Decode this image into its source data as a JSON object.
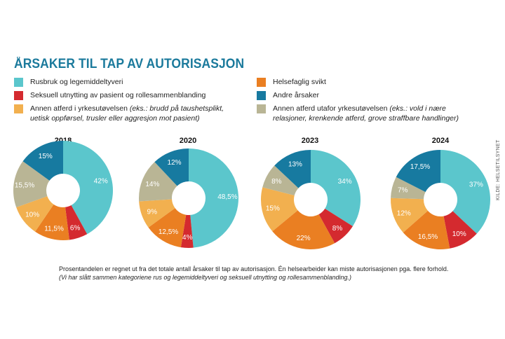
{
  "title": "ÅRSAKER TIL TAP AV AUTORISASJON",
  "legend": [
    {
      "label": "Rusbruk og legemiddeltyveri",
      "note": "",
      "color": "#5bc6cc"
    },
    {
      "label": "Seksuell utnytting av pasient og rollesammenblanding",
      "note": "",
      "color": "#d42a2f"
    },
    {
      "label": "Annen atferd i yrkesutøvelsen",
      "note": "(eks.: brudd på taushetsplikt,",
      "note2": "uetisk oppførsel, trusler eller aggresjon mot pasient)",
      "color": "#f2b04f"
    },
    {
      "label": "Helsefaglig svikt",
      "note": "",
      "color": "#ea7f22"
    },
    {
      "label": "Andre årsaker",
      "note": "",
      "color": "#177aa0"
    },
    {
      "label": "Annen atferd utafor yrkesutøvelsen",
      "note": "(eks.: vold i nære",
      "note2": "relasjoner, krenkende atferd, grove straffbare handlinger)",
      "color": "#b9b595"
    }
  ],
  "chart_data": {
    "type": "pie",
    "variant": "donut",
    "categories": [
      "Rusbruk og legemiddeltyveri",
      "Seksuell utnytting av pasient og rollesammenblanding",
      "Helsefaglig svikt",
      "Annen atferd i yrkesutøvelsen",
      "Annen atferd utafor yrkesutøvelsen",
      "Andre årsaker"
    ],
    "colors": [
      "#5bc6cc",
      "#d42a2f",
      "#ea7f22",
      "#f2b04f",
      "#b9b595",
      "#177aa0"
    ],
    "series": [
      {
        "name": "2018",
        "values": [
          42,
          6,
          11.5,
          10,
          15.5,
          15
        ],
        "labels": [
          "42%",
          "6%",
          "11,5%",
          "10%",
          "15,5%",
          "15%"
        ]
      },
      {
        "name": "2020",
        "values": [
          48.5,
          4,
          12.5,
          9,
          14,
          12
        ],
        "labels": [
          "48,5%",
          "4%",
          "12,5%",
          "9%",
          "14%",
          "12%"
        ]
      },
      {
        "name": "2023",
        "values": [
          34,
          8,
          22,
          15,
          8,
          13
        ],
        "labels": [
          "34%",
          "8%",
          "22%",
          "15%",
          "8%",
          "13%"
        ]
      },
      {
        "name": "2024",
        "values": [
          37,
          10,
          16.5,
          12,
          7,
          17.5
        ],
        "labels": [
          "37%",
          "10%",
          "16,5%",
          "12%",
          "7%",
          "17,5%"
        ]
      }
    ]
  },
  "footnote": {
    "text": "Prosentandelen er regnet ut fra det totale antall årsaker til tap av autorisasjon. Én helsearbeider kan miste autorisasjonen pga. flere forhold.",
    "italic": "(Vi har slått sammen kategoriene rus og legemiddeltyveri og seksuell utnytting og rollesammenblanding.)"
  },
  "source": "KILDE: HELSETILSYNET"
}
